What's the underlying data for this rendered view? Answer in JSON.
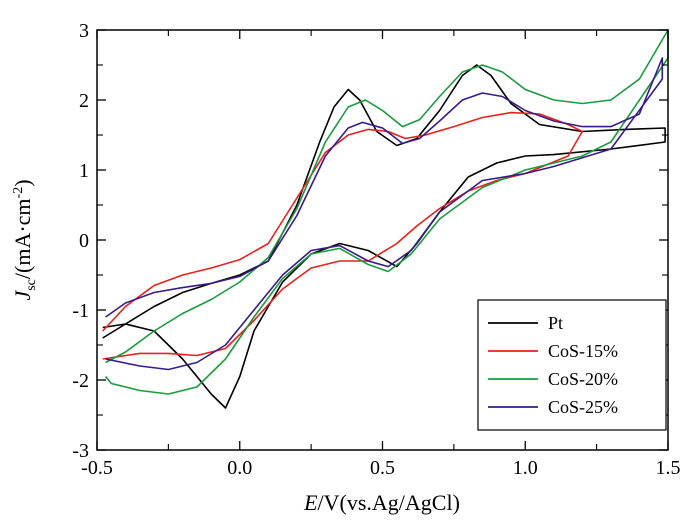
{
  "chart_data": {
    "type": "line",
    "xlabel": {
      "italic": "E",
      "rest": "/V(vs.Ag/AgCl)"
    },
    "ylabel": {
      "italic": "J",
      "sub": "sc",
      "rest": "/(mA·cm",
      "sup": "-2",
      "close": ")"
    },
    "xlim": [
      -0.5,
      1.5
    ],
    "ylim": [
      -3,
      3
    ],
    "xticks": [
      -0.5,
      0.0,
      0.5,
      1.0,
      1.5
    ],
    "xtick_labels": [
      "-0.5",
      "0.0",
      "0.5",
      "1.0",
      "1.5"
    ],
    "yticks": [
      -3,
      -2,
      -1,
      0,
      1,
      2,
      3
    ],
    "ytick_labels": [
      "-3",
      "-2",
      "-1",
      "0",
      "1",
      "2",
      "3"
    ],
    "legend_position": "bottom-right",
    "series": [
      {
        "name": "Pt",
        "color": "#000000",
        "x": [
          -0.48,
          -0.4,
          -0.3,
          -0.2,
          -0.1,
          0.0,
          0.1,
          0.2,
          0.28,
          0.33,
          0.38,
          0.42,
          0.48,
          0.55,
          0.62,
          0.7,
          0.78,
          0.83,
          0.88,
          0.95,
          1.05,
          1.2,
          1.35,
          1.49,
          1.49,
          1.3,
          1.1,
          1.0,
          0.9,
          0.8,
          0.7,
          0.62,
          0.55,
          0.45,
          0.35,
          0.25,
          0.15,
          0.05,
          0.0,
          -0.05,
          -0.1,
          -0.2,
          -0.3,
          -0.4,
          -0.48
        ],
        "y": [
          -1.4,
          -1.2,
          -0.95,
          -0.75,
          -0.62,
          -0.5,
          -0.3,
          0.5,
          1.4,
          1.9,
          2.15,
          2.0,
          1.55,
          1.35,
          1.45,
          1.85,
          2.35,
          2.5,
          2.35,
          1.95,
          1.65,
          1.55,
          1.58,
          1.6,
          1.4,
          1.3,
          1.22,
          1.2,
          1.1,
          0.9,
          0.4,
          -0.05,
          -0.38,
          -0.15,
          -0.05,
          -0.2,
          -0.6,
          -1.3,
          -1.95,
          -2.4,
          -2.2,
          -1.7,
          -1.3,
          -1.2,
          -1.25
        ]
      },
      {
        "name": "CoS-15%",
        "color": "#e8211c",
        "x": [
          -0.48,
          -0.4,
          -0.3,
          -0.2,
          -0.1,
          0.0,
          0.1,
          0.2,
          0.3,
          0.38,
          0.45,
          0.52,
          0.58,
          0.65,
          0.75,
          0.85,
          0.95,
          1.05,
          1.15,
          1.2,
          1.15,
          1.0,
          0.9,
          0.8,
          0.7,
          0.62,
          0.55,
          0.45,
          0.35,
          0.25,
          0.15,
          0.05,
          -0.05,
          -0.15,
          -0.25,
          -0.35,
          -0.48
        ],
        "y": [
          -1.3,
          -0.95,
          -0.65,
          -0.5,
          -0.4,
          -0.28,
          -0.05,
          0.6,
          1.25,
          1.5,
          1.58,
          1.55,
          1.45,
          1.5,
          1.62,
          1.75,
          1.82,
          1.8,
          1.65,
          1.55,
          1.2,
          0.95,
          0.85,
          0.7,
          0.45,
          0.2,
          -0.05,
          -0.3,
          -0.3,
          -0.4,
          -0.7,
          -1.15,
          -1.55,
          -1.65,
          -1.62,
          -1.62,
          -1.7
        ]
      },
      {
        "name": "CoS-20%",
        "color": "#1a9b3c",
        "x": [
          -0.47,
          -0.4,
          -0.3,
          -0.2,
          -0.1,
          0.0,
          0.1,
          0.2,
          0.3,
          0.38,
          0.44,
          0.5,
          0.57,
          0.63,
          0.7,
          0.78,
          0.85,
          0.92,
          1.0,
          1.1,
          1.2,
          1.3,
          1.4,
          1.5,
          1.5,
          1.3,
          1.2,
          1.0,
          0.85,
          0.7,
          0.6,
          0.52,
          0.45,
          0.35,
          0.25,
          0.15,
          0.05,
          -0.05,
          -0.15,
          -0.25,
          -0.35,
          -0.45,
          -0.47
        ],
        "y": [
          -1.75,
          -1.6,
          -1.3,
          -1.05,
          -0.85,
          -0.6,
          -0.25,
          0.45,
          1.4,
          1.9,
          2.0,
          1.85,
          1.62,
          1.72,
          2.05,
          2.4,
          2.5,
          2.4,
          2.15,
          2.0,
          1.95,
          2.0,
          2.3,
          3.0,
          2.6,
          1.4,
          1.2,
          1.0,
          0.75,
          0.3,
          -0.2,
          -0.45,
          -0.35,
          -0.12,
          -0.2,
          -0.55,
          -1.1,
          -1.7,
          -2.1,
          -2.2,
          -2.15,
          -2.05,
          -1.95
        ]
      },
      {
        "name": "CoS-25%",
        "color": "#3a1a8a",
        "x": [
          -0.47,
          -0.4,
          -0.3,
          -0.2,
          -0.1,
          0.0,
          0.1,
          0.2,
          0.3,
          0.38,
          0.43,
          0.5,
          0.57,
          0.63,
          0.7,
          0.78,
          0.85,
          0.92,
          1.0,
          1.1,
          1.2,
          1.3,
          1.4,
          1.48,
          1.48,
          1.3,
          1.1,
          1.0,
          0.85,
          0.7,
          0.6,
          0.52,
          0.45,
          0.35,
          0.25,
          0.15,
          0.05,
          -0.05,
          -0.15,
          -0.25,
          -0.35,
          -0.47
        ],
        "y": [
          -1.1,
          -0.9,
          -0.75,
          -0.68,
          -0.62,
          -0.52,
          -0.3,
          0.35,
          1.2,
          1.6,
          1.68,
          1.6,
          1.38,
          1.45,
          1.7,
          2.0,
          2.1,
          2.05,
          1.85,
          1.7,
          1.62,
          1.62,
          1.8,
          2.6,
          2.3,
          1.3,
          1.05,
          0.95,
          0.85,
          0.4,
          -0.15,
          -0.38,
          -0.3,
          -0.08,
          -0.15,
          -0.5,
          -1.0,
          -1.5,
          -1.75,
          -1.85,
          -1.8,
          -1.7
        ]
      }
    ]
  }
}
